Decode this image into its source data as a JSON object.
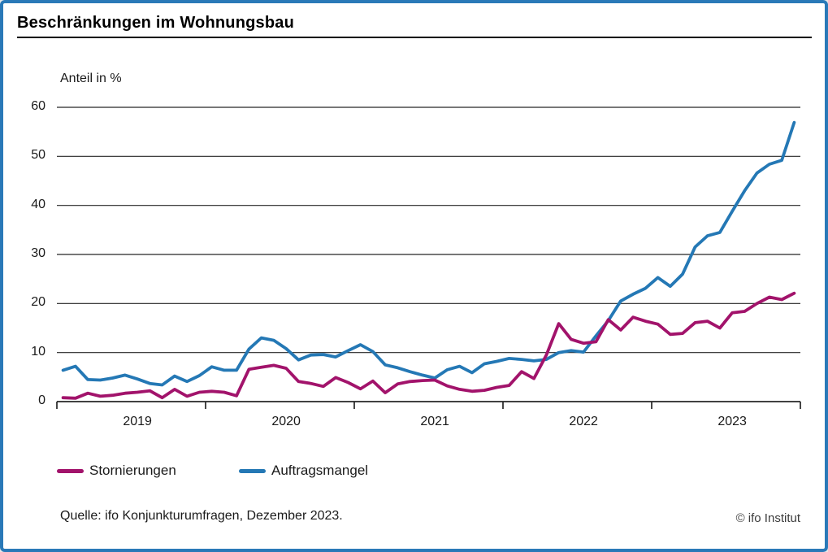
{
  "header": {
    "title": "Beschränkungen im Wohnungsbau"
  },
  "chart_data": {
    "type": "line",
    "title": "Beschränkungen im Wohnungsbau",
    "ylabel": "Anteil in %",
    "xlabel": "",
    "ylim": [
      0,
      60
    ],
    "y_ticks": [
      0,
      10,
      20,
      30,
      40,
      50,
      60
    ],
    "x_year_labels": [
      "2019",
      "2020",
      "2021",
      "2022",
      "2023"
    ],
    "x_months": "monthly values Jan 2019 - Dec 2023",
    "grid": "horizontal gridlines on",
    "legend_position": "below chart",
    "axis_color": "#262626",
    "series": [
      {
        "name": "Stornierungen",
        "color": "#a2136b",
        "values": [
          0.8,
          0.7,
          1.7,
          1.1,
          1.3,
          1.7,
          1.9,
          2.2,
          0.8,
          2.5,
          1.1,
          1.9,
          2.1,
          1.9,
          1.2,
          6.6,
          7.0,
          7.4,
          6.8,
          4.1,
          3.7,
          3.1,
          4.9,
          3.9,
          2.6,
          4.2,
          1.8,
          3.6,
          4.1,
          4.3,
          4.4,
          3.2,
          2.5,
          2.1,
          2.3,
          2.9,
          3.3,
          6.1,
          4.7,
          9.5,
          15.9,
          12.7,
          11.9,
          12.2,
          16.7,
          14.6,
          17.2,
          16.4,
          15.8,
          13.7,
          13.9,
          16.1,
          16.4,
          15.0,
          18.1,
          18.4,
          20.0,
          21.3,
          20.8,
          22.1
        ]
      },
      {
        "name": "Auftragsmangel",
        "color": "#2478b5",
        "values": [
          6.4,
          7.2,
          4.5,
          4.4,
          4.8,
          5.4,
          4.6,
          3.7,
          3.4,
          5.2,
          4.1,
          5.3,
          7.1,
          6.4,
          6.4,
          10.7,
          13.0,
          12.5,
          10.8,
          8.5,
          9.5,
          9.6,
          9.1,
          10.4,
          11.6,
          10.2,
          7.5,
          6.9,
          6.1,
          5.4,
          4.8,
          6.5,
          7.2,
          5.9,
          7.7,
          8.2,
          8.8,
          8.6,
          8.3,
          8.6,
          10.0,
          10.4,
          10.1,
          13.4,
          16.5,
          20.5,
          21.9,
          23.1,
          25.3,
          23.5,
          26.0,
          31.5,
          33.8,
          34.5,
          38.8,
          43.0,
          46.6,
          48.4,
          49.2,
          56.9
        ]
      }
    ]
  },
  "footer": {
    "source": "Quelle: ifo Konjunkturumfragen, Dezember 2023.",
    "copyright": "© ifo Institut"
  }
}
